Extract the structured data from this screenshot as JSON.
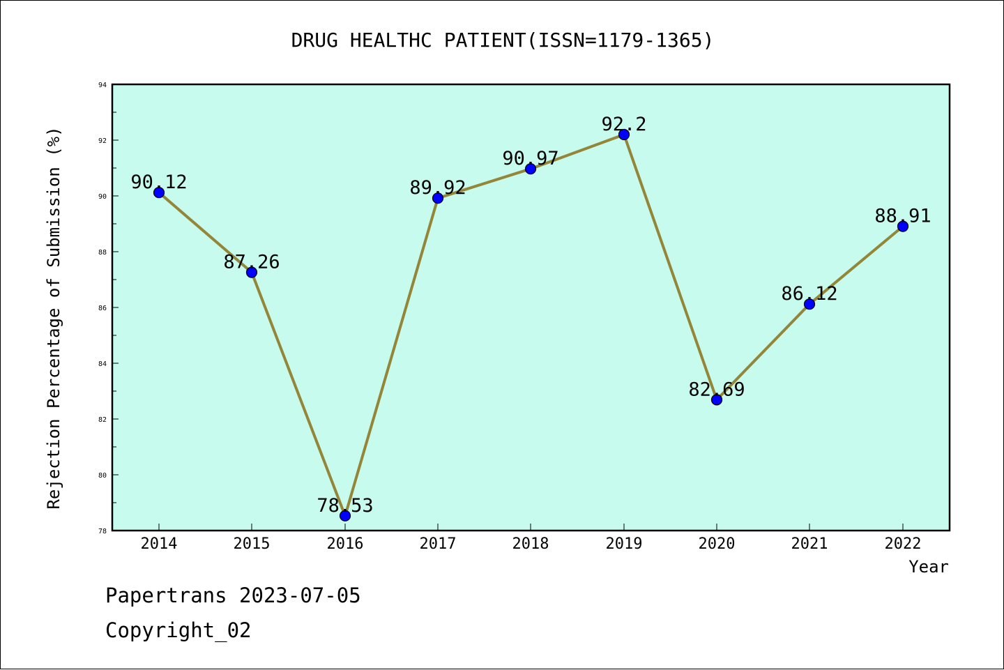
{
  "chart_data": {
    "type": "line",
    "title": "DRUG HEALTHC PATIENT(ISSN=1179-1365)",
    "xlabel": "Year",
    "ylabel": "Rejection Percentage of Submission (%)",
    "categories": [
      "2014",
      "2015",
      "2016",
      "2017",
      "2018",
      "2019",
      "2020",
      "2021",
      "2022"
    ],
    "series": [
      {
        "values": [
          90.12,
          87.26,
          78.53,
          89.92,
          90.97,
          92.2,
          82.69,
          86.12,
          88.91
        ],
        "data_labels": [
          "90.12",
          "87.26",
          "78.53",
          "89.92",
          "90.97",
          "92.2",
          "82.69",
          "86.12",
          "88.91"
        ]
      }
    ],
    "ylim": [
      78,
      94
    ],
    "yticks": [
      "78",
      "80",
      "82",
      "84",
      "86",
      "88",
      "90",
      "92",
      "94"
    ],
    "grid": false,
    "colors": {
      "plot_background": "#c6fbee",
      "line": "#948638",
      "marker": "#0000ff"
    }
  },
  "footer": {
    "line1": "Papertrans 2023-07-05",
    "line2": "Copyright_02"
  }
}
